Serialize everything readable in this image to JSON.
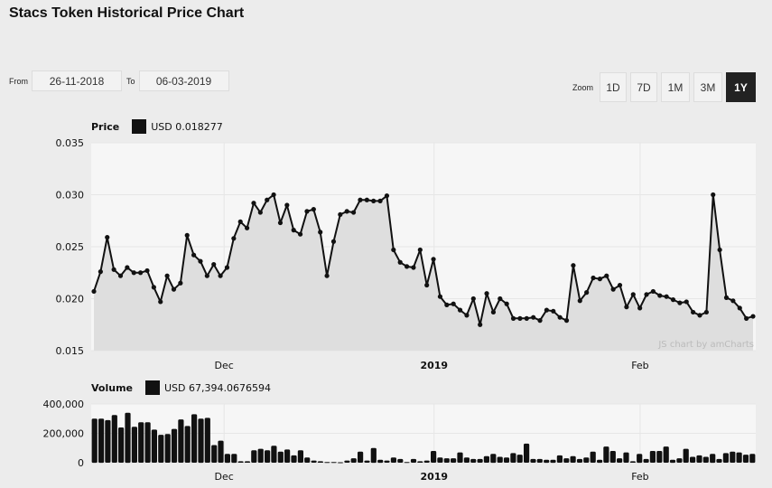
{
  "header": {
    "title": "Stacs Token Historical Price Chart"
  },
  "range": {
    "from_label": "From",
    "from_value": "26-11-2018",
    "to_label": "To",
    "to_value": "06-03-2019"
  },
  "zoom": {
    "label": "Zoom",
    "buttons": [
      {
        "label": "1D",
        "active": false
      },
      {
        "label": "7D",
        "active": false
      },
      {
        "label": "1M",
        "active": false
      },
      {
        "label": "3M",
        "active": false
      },
      {
        "label": "1Y",
        "active": true
      }
    ]
  },
  "price_panel": {
    "legend_title": "Price",
    "legend_value": "USD 0.018277",
    "credit": "JS chart by amCharts"
  },
  "volume_panel": {
    "legend_title": "Volume",
    "legend_value": "USD 67,394.0676594"
  },
  "colors": {
    "line": "#111111",
    "fill": "#dedede",
    "plot_bg": "#f6f6f6",
    "page_bg": "#ececec",
    "bar": "#111111"
  },
  "chart_data": [
    {
      "type": "area",
      "title": "Price",
      "ylabel": "USD",
      "ylim": [
        0.015,
        0.035
      ],
      "yticks": [
        "0.015",
        "0.020",
        "0.025",
        "0.030",
        "0.035"
      ],
      "xticks": [
        {
          "label": "Dec",
          "bold": false,
          "pos": 0.2
        },
        {
          "label": "2019",
          "bold": true,
          "pos": 0.516
        },
        {
          "label": "Feb",
          "bold": false,
          "pos": 0.826
        }
      ],
      "grid": true,
      "series": [
        {
          "name": "Price (USD)",
          "values": [
            0.0207,
            0.0226,
            0.0259,
            0.0228,
            0.0222,
            0.023,
            0.0225,
            0.0225,
            0.0227,
            0.0211,
            0.0197,
            0.0222,
            0.0209,
            0.0215,
            0.0261,
            0.0242,
            0.0236,
            0.0222,
            0.0233,
            0.0222,
            0.023,
            0.0258,
            0.0274,
            0.0268,
            0.0292,
            0.0283,
            0.0295,
            0.03,
            0.0273,
            0.029,
            0.0266,
            0.0262,
            0.0284,
            0.0286,
            0.0264,
            0.0222,
            0.0255,
            0.0281,
            0.0284,
            0.0283,
            0.0295,
            0.0295,
            0.0294,
            0.0294,
            0.0299,
            0.0247,
            0.0235,
            0.0231,
            0.023,
            0.0247,
            0.0213,
            0.0238,
            0.0202,
            0.0194,
            0.0195,
            0.0189,
            0.0184,
            0.02,
            0.0175,
            0.0205,
            0.0187,
            0.02,
            0.0195,
            0.0181,
            0.0181,
            0.0181,
            0.0182,
            0.0179,
            0.0189,
            0.0188,
            0.0182,
            0.0179,
            0.0232,
            0.0198,
            0.0206,
            0.022,
            0.0219,
            0.0222,
            0.0209,
            0.0213,
            0.0192,
            0.0204,
            0.0191,
            0.0204,
            0.0207,
            0.0203,
            0.0202,
            0.0199,
            0.0196,
            0.0197,
            0.0187,
            0.0184,
            0.0187,
            0.03,
            0.0247,
            0.0201,
            0.0198,
            0.0191,
            0.0181,
            0.0183
          ]
        }
      ]
    },
    {
      "type": "bar",
      "title": "Volume",
      "ylabel": "USD",
      "ylim": [
        0,
        400000
      ],
      "yticks": [
        "0",
        "200,000",
        "400,000"
      ],
      "xticks": [
        {
          "label": "Dec",
          "bold": false,
          "pos": 0.2
        },
        {
          "label": "2019",
          "bold": true,
          "pos": 0.516
        },
        {
          "label": "Feb",
          "bold": false,
          "pos": 0.826
        }
      ],
      "grid": true,
      "series": [
        {
          "name": "Volume (USD)",
          "values": [
            300000,
            300000,
            290000,
            325000,
            240000,
            340000,
            245000,
            275000,
            275000,
            225000,
            190000,
            195000,
            230000,
            295000,
            250000,
            330000,
            300000,
            305000,
            120000,
            150000,
            60000,
            60000,
            10000,
            10000,
            85000,
            95000,
            85000,
            115000,
            75000,
            90000,
            50000,
            85000,
            35000,
            15000,
            10000,
            5000,
            5000,
            3000,
            15000,
            30000,
            75000,
            15000,
            100000,
            20000,
            15000,
            35000,
            25000,
            5000,
            25000,
            10000,
            15000,
            80000,
            35000,
            30000,
            30000,
            70000,
            35000,
            25000,
            25000,
            45000,
            60000,
            40000,
            35000,
            65000,
            55000,
            130000,
            25000,
            25000,
            20000,
            20000,
            50000,
            30000,
            45000,
            25000,
            35000,
            75000,
            20000,
            110000,
            80000,
            30000,
            70000,
            10000,
            60000,
            25000,
            80000,
            80000,
            110000,
            20000,
            30000,
            95000,
            40000,
            50000,
            40000,
            60000,
            25000,
            65000,
            75000,
            70000,
            55000,
            60000
          ]
        }
      ]
    }
  ]
}
